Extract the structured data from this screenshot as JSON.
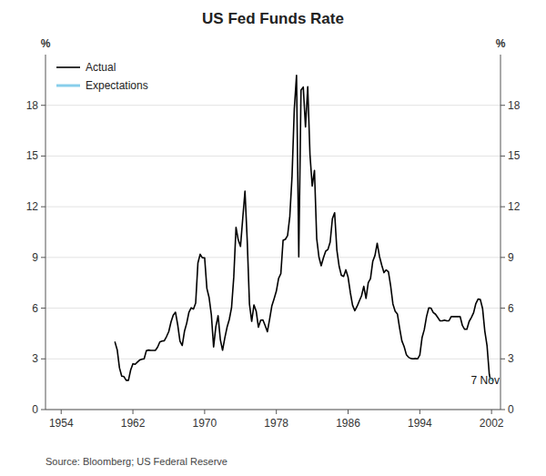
{
  "chart_data": {
    "type": "line",
    "title": "US Fed Funds Rate",
    "y_label": "%",
    "y2_label": "%",
    "source": "Source: Bloomberg; US Federal Reserve",
    "xlim": [
      1952.25,
      2003.0
    ],
    "xticks": [
      1954,
      1962,
      1970,
      1978,
      1986,
      1994,
      2002
    ],
    "ylim": [
      0,
      21
    ],
    "yticks": [
      0,
      3,
      6,
      9,
      12,
      15,
      18
    ],
    "y2lim": [
      0,
      21
    ],
    "y2ticks": [
      0,
      3,
      6,
      9,
      12,
      15,
      18
    ],
    "grid": "y",
    "legend": "upper-left",
    "annotations": [
      {
        "text": "7 Nov",
        "x": 2001.3,
        "y": 1.5
      }
    ],
    "series": [
      {
        "name": "Actual",
        "color": "#000000",
        "x": [
          1960.0,
          1960.25,
          1960.5,
          1960.75,
          1961.0,
          1961.25,
          1961.5,
          1961.75,
          1962.0,
          1962.25,
          1962.5,
          1962.75,
          1963.0,
          1963.25,
          1963.5,
          1963.75,
          1964.0,
          1964.25,
          1964.5,
          1964.75,
          1965.0,
          1965.25,
          1965.5,
          1965.75,
          1966.0,
          1966.25,
          1966.5,
          1966.75,
          1967.0,
          1967.25,
          1967.5,
          1967.75,
          1968.0,
          1968.25,
          1968.5,
          1968.75,
          1969.0,
          1969.25,
          1969.5,
          1969.75,
          1970.0,
          1970.25,
          1970.5,
          1970.75,
          1971.0,
          1971.25,
          1971.5,
          1971.75,
          1972.0,
          1972.25,
          1972.5,
          1972.75,
          1973.0,
          1973.25,
          1973.5,
          1973.75,
          1974.0,
          1974.25,
          1974.5,
          1974.75,
          1975.0,
          1975.25,
          1975.5,
          1975.75,
          1976.0,
          1976.25,
          1976.5,
          1976.75,
          1977.0,
          1977.25,
          1977.5,
          1977.75,
          1978.0,
          1978.25,
          1978.5,
          1978.75,
          1979.0,
          1979.25,
          1979.5,
          1979.75,
          1980.0,
          1980.25,
          1980.5,
          1980.75,
          1981.0,
          1981.25,
          1981.5,
          1981.75,
          1982.0,
          1982.25,
          1982.5,
          1982.75,
          1983.0,
          1983.25,
          1983.5,
          1983.75,
          1984.0,
          1984.25,
          1984.5,
          1984.75,
          1985.0,
          1985.25,
          1985.5,
          1985.75,
          1986.0,
          1986.25,
          1986.5,
          1986.75,
          1987.0,
          1987.25,
          1987.5,
          1987.75,
          1988.0,
          1988.25,
          1988.5,
          1988.75,
          1989.0,
          1989.25,
          1989.5,
          1989.75,
          1990.0,
          1990.25,
          1990.5,
          1990.75,
          1991.0,
          1991.25,
          1991.5,
          1991.75,
          1992.0,
          1992.25,
          1992.5,
          1992.75,
          1993.0,
          1993.25,
          1993.5,
          1993.75,
          1994.0,
          1994.25,
          1994.5,
          1994.75,
          1995.0,
          1995.25,
          1995.5,
          1995.75,
          1996.0,
          1996.25,
          1996.5,
          1996.75,
          1997.0,
          1997.25,
          1997.5,
          1997.75,
          1998.0,
          1998.25,
          1998.5,
          1998.75,
          1999.0,
          1999.25,
          1999.5,
          1999.75,
          2000.0,
          2000.25,
          2000.5,
          2000.75,
          2001.0,
          2001.25,
          2001.5,
          2001.75,
          2001.85
        ],
        "values": [
          3.99,
          3.53,
          2.47,
          1.98,
          1.95,
          1.73,
          1.73,
          2.34,
          2.71,
          2.68,
          2.81,
          2.93,
          2.98,
          3.0,
          3.48,
          3.52,
          3.5,
          3.5,
          3.5,
          3.69,
          4.0,
          4.05,
          4.07,
          4.32,
          4.62,
          5.18,
          5.59,
          5.76,
          5.0,
          4.05,
          3.79,
          4.63,
          5.11,
          5.76,
          6.02,
          5.94,
          6.3,
          8.67,
          9.19,
          8.98,
          8.98,
          7.17,
          6.62,
          5.6,
          3.71,
          4.91,
          5.55,
          4.14,
          3.51,
          4.23,
          4.87,
          5.33,
          6.02,
          7.84,
          10.78,
          10.04,
          9.65,
          11.31,
          12.92,
          10.01,
          6.24,
          5.22,
          6.19,
          5.82,
          4.87,
          5.29,
          5.3,
          4.97,
          4.61,
          5.35,
          6.14,
          6.56,
          7.01,
          7.76,
          8.04,
          10.01,
          10.07,
          10.29,
          11.42,
          13.82,
          17.78,
          19.77,
          9.03,
          18.9,
          19.08,
          16.72,
          19.1,
          15.08,
          13.22,
          14.15,
          10.12,
          9.02,
          8.51,
          8.98,
          9.37,
          9.47,
          9.91,
          11.29,
          11.64,
          9.43,
          8.48,
          7.94,
          7.88,
          8.27,
          7.83,
          6.92,
          6.17,
          5.85,
          6.1,
          6.42,
          6.73,
          7.29,
          6.58,
          7.51,
          7.75,
          8.76,
          9.12,
          9.84,
          9.06,
          8.55,
          8.1,
          8.26,
          8.15,
          7.31,
          6.25,
          5.82,
          5.66,
          4.81,
          4.06,
          3.73,
          3.25,
          3.09,
          3.02,
          3.0,
          3.02,
          3.0,
          3.22,
          4.25,
          4.73,
          5.5,
          6.02,
          6.0,
          5.74,
          5.64,
          5.45,
          5.25,
          5.25,
          5.29,
          5.25,
          5.25,
          5.5,
          5.5,
          5.5,
          5.5,
          5.5,
          4.97,
          4.75,
          4.75,
          5.21,
          5.45,
          5.73,
          6.27,
          6.54,
          6.51,
          5.98,
          4.64,
          3.77,
          2.09,
          1.82
        ]
      },
      {
        "name": "Expectations",
        "color": "#87CEEB",
        "x": [
          2001.85,
          2002.1
        ],
        "values": [
          1.82,
          1.75
        ]
      }
    ]
  }
}
